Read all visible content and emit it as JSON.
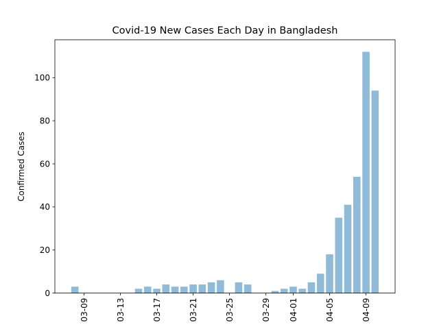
{
  "chart_data": {
    "type": "bar",
    "title": "Covid-19 New Cases Each Day in Bangladesh",
    "xlabel": "",
    "ylabel": "Confirmed Cases",
    "x": [
      "03-08",
      "03-09",
      "03-10",
      "03-11",
      "03-12",
      "03-13",
      "03-14",
      "03-15",
      "03-16",
      "03-17",
      "03-18",
      "03-19",
      "03-20",
      "03-21",
      "03-22",
      "03-23",
      "03-24",
      "03-25",
      "03-26",
      "03-27",
      "03-28",
      "03-29",
      "03-30",
      "03-31",
      "04-01",
      "04-02",
      "04-03",
      "04-04",
      "04-05",
      "04-06",
      "04-07",
      "04-08",
      "04-09",
      "04-10"
    ],
    "values": [
      3,
      0,
      0,
      0,
      0,
      0,
      0,
      2,
      3,
      2,
      4,
      3,
      3,
      4,
      4,
      5,
      6,
      0,
      5,
      4,
      0,
      0,
      1,
      2,
      3,
      2,
      5,
      9,
      18,
      35,
      41,
      54,
      112,
      94
    ],
    "xticks": [
      "03-09",
      "03-13",
      "03-17",
      "03-21",
      "03-25",
      "03-29",
      "04-01",
      "04-05",
      "04-09"
    ],
    "yticks": [
      0,
      20,
      40,
      60,
      80,
      100
    ],
    "ylim": [
      0,
      117.6
    ],
    "bar_color": "#8fbbd9",
    "grid": false
  }
}
